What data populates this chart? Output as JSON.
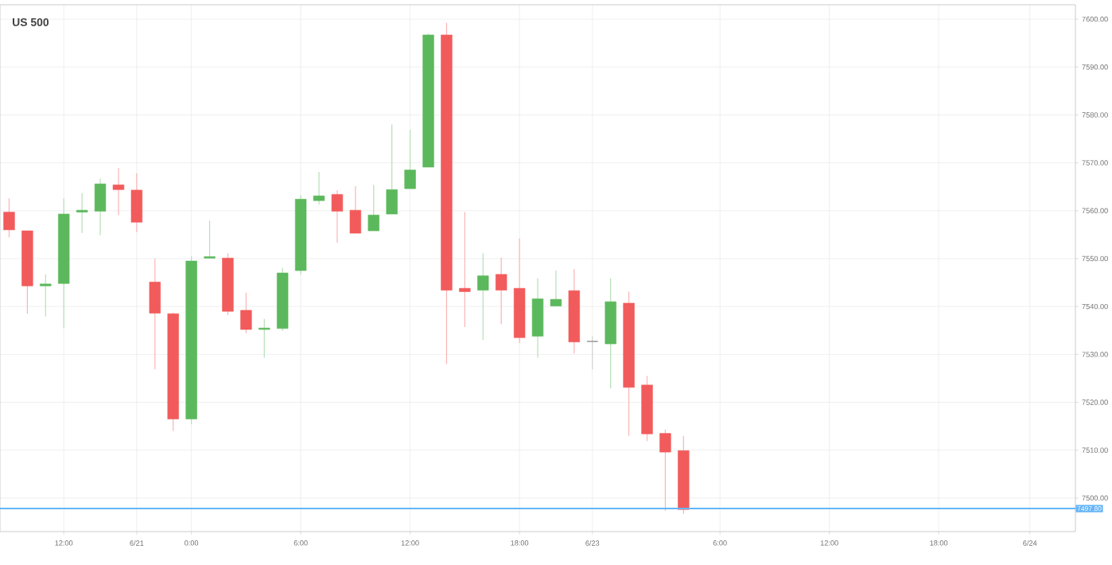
{
  "chart_data": {
    "type": "candlestick",
    "title": "US 500",
    "categories": [
      null,
      null,
      null,
      "12:00",
      null,
      null,
      null,
      "6/21",
      null,
      null,
      "0:00",
      null,
      null,
      null,
      null,
      null,
      "6:00",
      null,
      null,
      null,
      null,
      null,
      "12:00",
      null,
      null,
      null,
      null,
      null,
      "18:00",
      null,
      null,
      null,
      "6/23",
      null,
      null,
      null,
      null,
      null,
      null,
      "6:00",
      null,
      null,
      null,
      null,
      null,
      "12:00",
      null,
      null,
      null,
      null,
      null,
      "18:00",
      null,
      null,
      null,
      null,
      "6/24",
      null,
      null
    ],
    "ohlc": [
      [
        7559.7,
        7562.6,
        7554.4,
        7556.0
      ],
      [
        7555.8,
        7555.8,
        7538.5,
        7544.3
      ],
      [
        7544.3,
        7546.7,
        7537.9,
        7544.7
      ],
      [
        7544.8,
        7562.6,
        7535.5,
        7559.3
      ],
      [
        7559.7,
        7563.7,
        7555.3,
        7560.1
      ],
      [
        7559.9,
        7566.7,
        7554.9,
        7565.6
      ],
      [
        7565.4,
        7568.9,
        7559.1,
        7564.4
      ],
      [
        7564.3,
        7567.8,
        7555.5,
        7557.6
      ],
      [
        7545.1,
        7550.0,
        7526.9,
        7538.6
      ],
      [
        7538.5,
        7538.7,
        7514.0,
        7516.5
      ],
      [
        7516.5,
        7550.5,
        7515.4,
        7549.5
      ],
      [
        7550.1,
        7557.9,
        7550.1,
        7550.4
      ],
      [
        7550.1,
        7551.1,
        7538.2,
        7539.0
      ],
      [
        7539.2,
        7542.9,
        7534.4,
        7535.2
      ],
      [
        7535.2,
        7537.4,
        7529.3,
        7535.5
      ],
      [
        7535.4,
        7548.1,
        7534.9,
        7547.0
      ],
      [
        7547.5,
        7563.2,
        7546.7,
        7562.4
      ],
      [
        7562.1,
        7568.1,
        7561.3,
        7563.1
      ],
      [
        7563.4,
        7564.3,
        7553.3,
        7559.9
      ],
      [
        7560.1,
        7565.1,
        7555.3,
        7555.3
      ],
      [
        7555.8,
        7565.4,
        7555.8,
        7559.1
      ],
      [
        7559.3,
        7578.0,
        7559.3,
        7564.4
      ],
      [
        7564.6,
        7576.9,
        7564.6,
        7568.5
      ],
      [
        7569.1,
        7597.0,
        7569.1,
        7596.7
      ],
      [
        7596.7,
        7599.2,
        7528.0,
        7543.4
      ],
      [
        7543.8,
        7559.7,
        7535.7,
        7543.1
      ],
      [
        7543.4,
        7551.1,
        7533.0,
        7546.4
      ],
      [
        7546.7,
        7550.2,
        7536.3,
        7543.4
      ],
      [
        7543.8,
        7554.2,
        7532.4,
        7533.5
      ],
      [
        7533.8,
        7545.9,
        7529.3,
        7541.6
      ],
      [
        7540.1,
        7547.5,
        7540.1,
        7541.5
      ],
      [
        7543.3,
        7547.8,
        7530.2,
        7532.6
      ],
      [
        7532.7,
        7533.8,
        7526.9,
        7532.7
      ],
      [
        7532.2,
        7545.9,
        7522.9,
        7541.0
      ],
      [
        7540.7,
        7543.1,
        7513.0,
        7523.1
      ],
      [
        7523.6,
        7525.5,
        7511.9,
        7513.4
      ],
      [
        7513.5,
        7514.3,
        7497.3,
        7509.6
      ],
      [
        7509.9,
        7513.0,
        7496.7,
        7497.6
      ],
      null,
      null,
      null,
      null,
      null,
      null,
      null,
      null,
      null,
      null,
      null,
      null,
      null,
      null,
      null,
      null,
      null,
      null,
      null,
      null,
      null
    ],
    "colors": [
      "#f25b5b",
      "#f25b5b",
      "#5cb85c",
      "#5cb85c",
      "#5cb85c",
      "#5cb85c",
      "#f25b5b",
      "#f25b5b",
      "#f25b5b",
      "#f25b5b",
      "#5cb85c",
      "#5cb85c",
      "#f25b5b",
      "#f25b5b",
      "#5cb85c",
      "#5cb85c",
      "#5cb85c",
      "#5cb85c",
      "#f25b5b",
      "#f25b5b",
      "#5cb85c",
      "#5cb85c",
      "#5cb85c",
      "#5cb85c",
      "#f25b5b",
      "#f25b5b",
      "#5cb85c",
      "#f25b5b",
      "#f25b5b",
      "#5cb85c",
      "#5cb85c",
      "#f25b5b",
      "#9e9e9e",
      "#5cb85c",
      "#f25b5b",
      "#f25b5b",
      "#f25b5b",
      "#f25b5b",
      null,
      null,
      null,
      null,
      null,
      null,
      null,
      null,
      null,
      null,
      null,
      null,
      null,
      null,
      null,
      null,
      null,
      null,
      null,
      null,
      null
    ],
    "ylim": [
      7493,
      7603
    ],
    "yticks": [
      {
        "value": 7500,
        "label": "7500.00"
      },
      {
        "value": 7510,
        "label": "7510.00"
      },
      {
        "value": 7520,
        "label": "7520.00"
      },
      {
        "value": 7530,
        "label": "7530.00"
      },
      {
        "value": 7540,
        "label": "7540.00"
      },
      {
        "value": 7550,
        "label": "7550.00"
      },
      {
        "value": 7560,
        "label": "7560.00"
      },
      {
        "value": 7570,
        "label": "7570.00"
      },
      {
        "value": 7580,
        "label": "7580.00"
      },
      {
        "value": 7590,
        "label": "7590.00"
      },
      {
        "value": 7600,
        "label": "7600.00"
      }
    ],
    "grid": true,
    "ref_lines": [
      {
        "axis": "y",
        "value": 7497.8,
        "label": "7497.80",
        "color": "#64b5f6"
      }
    ]
  }
}
